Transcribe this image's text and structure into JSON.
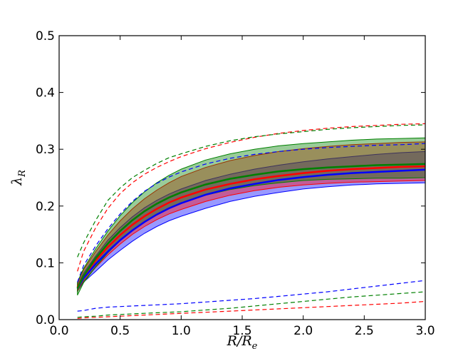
{
  "chart_data": {
    "type": "line",
    "xlabel": "R/R_e",
    "ylabel": "λ_R",
    "xlim": [
      0.0,
      3.0
    ],
    "ylim": [
      0.0,
      0.5
    ],
    "xticks": [
      "0.0",
      "0.5",
      "1.0",
      "1.5",
      "2.0",
      "2.5",
      "3.0"
    ],
    "yticks": [
      "0.0",
      "0.1",
      "0.2",
      "0.3",
      "0.4",
      "0.5"
    ],
    "grid": false,
    "legend": "none",
    "x": [
      0.15,
      0.2,
      0.3,
      0.4,
      0.5,
      0.6,
      0.7,
      0.8,
      0.9,
      1.0,
      1.2,
      1.4,
      1.6,
      1.8,
      2.0,
      2.2,
      2.4,
      2.6,
      2.8,
      3.0
    ],
    "bands": [
      {
        "color": "#0000ff",
        "lower": [
          0.05,
          0.066,
          0.085,
          0.105,
          0.122,
          0.138,
          0.152,
          0.164,
          0.174,
          0.182,
          0.196,
          0.208,
          0.217,
          0.224,
          0.23,
          0.234,
          0.237,
          0.239,
          0.24,
          0.241
        ],
        "upper": [
          0.06,
          0.082,
          0.112,
          0.14,
          0.162,
          0.181,
          0.197,
          0.21,
          0.221,
          0.23,
          0.245,
          0.256,
          0.265,
          0.272,
          0.278,
          0.283,
          0.287,
          0.291,
          0.294,
          0.296
        ]
      },
      {
        "color": "#ff0000",
        "lower": [
          0.05,
          0.068,
          0.092,
          0.114,
          0.133,
          0.15,
          0.164,
          0.176,
          0.186,
          0.194,
          0.208,
          0.219,
          0.227,
          0.233,
          0.237,
          0.24,
          0.242,
          0.243,
          0.244,
          0.245
        ],
        "upper": [
          0.064,
          0.088,
          0.12,
          0.149,
          0.174,
          0.195,
          0.213,
          0.228,
          0.241,
          0.252,
          0.268,
          0.28,
          0.289,
          0.296,
          0.301,
          0.305,
          0.308,
          0.31,
          0.312,
          0.313
        ]
      },
      {
        "color": "#008000",
        "lower": [
          0.043,
          0.065,
          0.093,
          0.118,
          0.139,
          0.157,
          0.172,
          0.185,
          0.196,
          0.205,
          0.219,
          0.229,
          0.236,
          0.241,
          0.245,
          0.247,
          0.248,
          0.249,
          0.249,
          0.25
        ],
        "upper": [
          0.066,
          0.09,
          0.125,
          0.156,
          0.183,
          0.206,
          0.225,
          0.241,
          0.254,
          0.265,
          0.281,
          0.292,
          0.3,
          0.306,
          0.31,
          0.313,
          0.316,
          0.318,
          0.319,
          0.32
        ]
      }
    ],
    "series": [
      {
        "color": "#0000ff",
        "style": "solid",
        "values": [
          0.055,
          0.073,
          0.098,
          0.12,
          0.14,
          0.157,
          0.172,
          0.185,
          0.196,
          0.205,
          0.22,
          0.231,
          0.239,
          0.246,
          0.251,
          0.255,
          0.258,
          0.26,
          0.262,
          0.264
        ]
      },
      {
        "color": "#ff0000",
        "style": "solid",
        "values": [
          0.057,
          0.077,
          0.104,
          0.128,
          0.149,
          0.167,
          0.182,
          0.195,
          0.206,
          0.215,
          0.229,
          0.239,
          0.247,
          0.253,
          0.258,
          0.262,
          0.265,
          0.267,
          0.269,
          0.27
        ]
      },
      {
        "color": "#008000",
        "style": "solid",
        "values": [
          0.055,
          0.077,
          0.108,
          0.134,
          0.156,
          0.175,
          0.191,
          0.204,
          0.215,
          0.224,
          0.238,
          0.248,
          0.255,
          0.261,
          0.265,
          0.268,
          0.27,
          0.272,
          0.273,
          0.274
        ]
      },
      {
        "color": "#0000ff",
        "style": "dashed",
        "values": [
          0.066,
          0.095,
          0.13,
          0.16,
          0.186,
          0.208,
          0.226,
          0.24,
          0.251,
          0.26,
          0.274,
          0.284,
          0.291,
          0.296,
          0.3,
          0.303,
          0.305,
          0.307,
          0.308,
          0.31
        ]
      },
      {
        "color": "#ff0000",
        "style": "dashed",
        "values": [
          0.085,
          0.12,
          0.162,
          0.196,
          0.222,
          0.241,
          0.256,
          0.268,
          0.278,
          0.287,
          0.301,
          0.312,
          0.321,
          0.328,
          0.333,
          0.337,
          0.34,
          0.342,
          0.344,
          0.345
        ]
      },
      {
        "color": "#008000",
        "style": "dashed",
        "values": [
          0.11,
          0.135,
          0.175,
          0.21,
          0.232,
          0.25,
          0.263,
          0.275,
          0.285,
          0.292,
          0.305,
          0.315,
          0.322,
          0.327,
          0.331,
          0.335,
          0.338,
          0.34,
          0.342,
          0.343
        ]
      },
      {
        "color": "#0000ff",
        "style": "dashed",
        "values": [
          0.015,
          0.016,
          0.02,
          0.022,
          0.023,
          0.024,
          0.025,
          0.026,
          0.027,
          0.028,
          0.031,
          0.034,
          0.037,
          0.041,
          0.045,
          0.049,
          0.054,
          0.059,
          0.064,
          0.069
        ]
      },
      {
        "color": "#008000",
        "style": "dashed",
        "values": [
          0.004,
          0.005,
          0.006,
          0.008,
          0.009,
          0.01,
          0.011,
          0.012,
          0.013,
          0.014,
          0.017,
          0.02,
          0.024,
          0.028,
          0.032,
          0.036,
          0.04,
          0.043,
          0.046,
          0.049
        ]
      },
      {
        "color": "#ff0000",
        "style": "dashed",
        "values": [
          0.002,
          0.003,
          0.004,
          0.005,
          0.006,
          0.007,
          0.008,
          0.009,
          0.01,
          0.011,
          0.013,
          0.015,
          0.017,
          0.019,
          0.021,
          0.023,
          0.025,
          0.027,
          0.029,
          0.032
        ]
      }
    ]
  }
}
